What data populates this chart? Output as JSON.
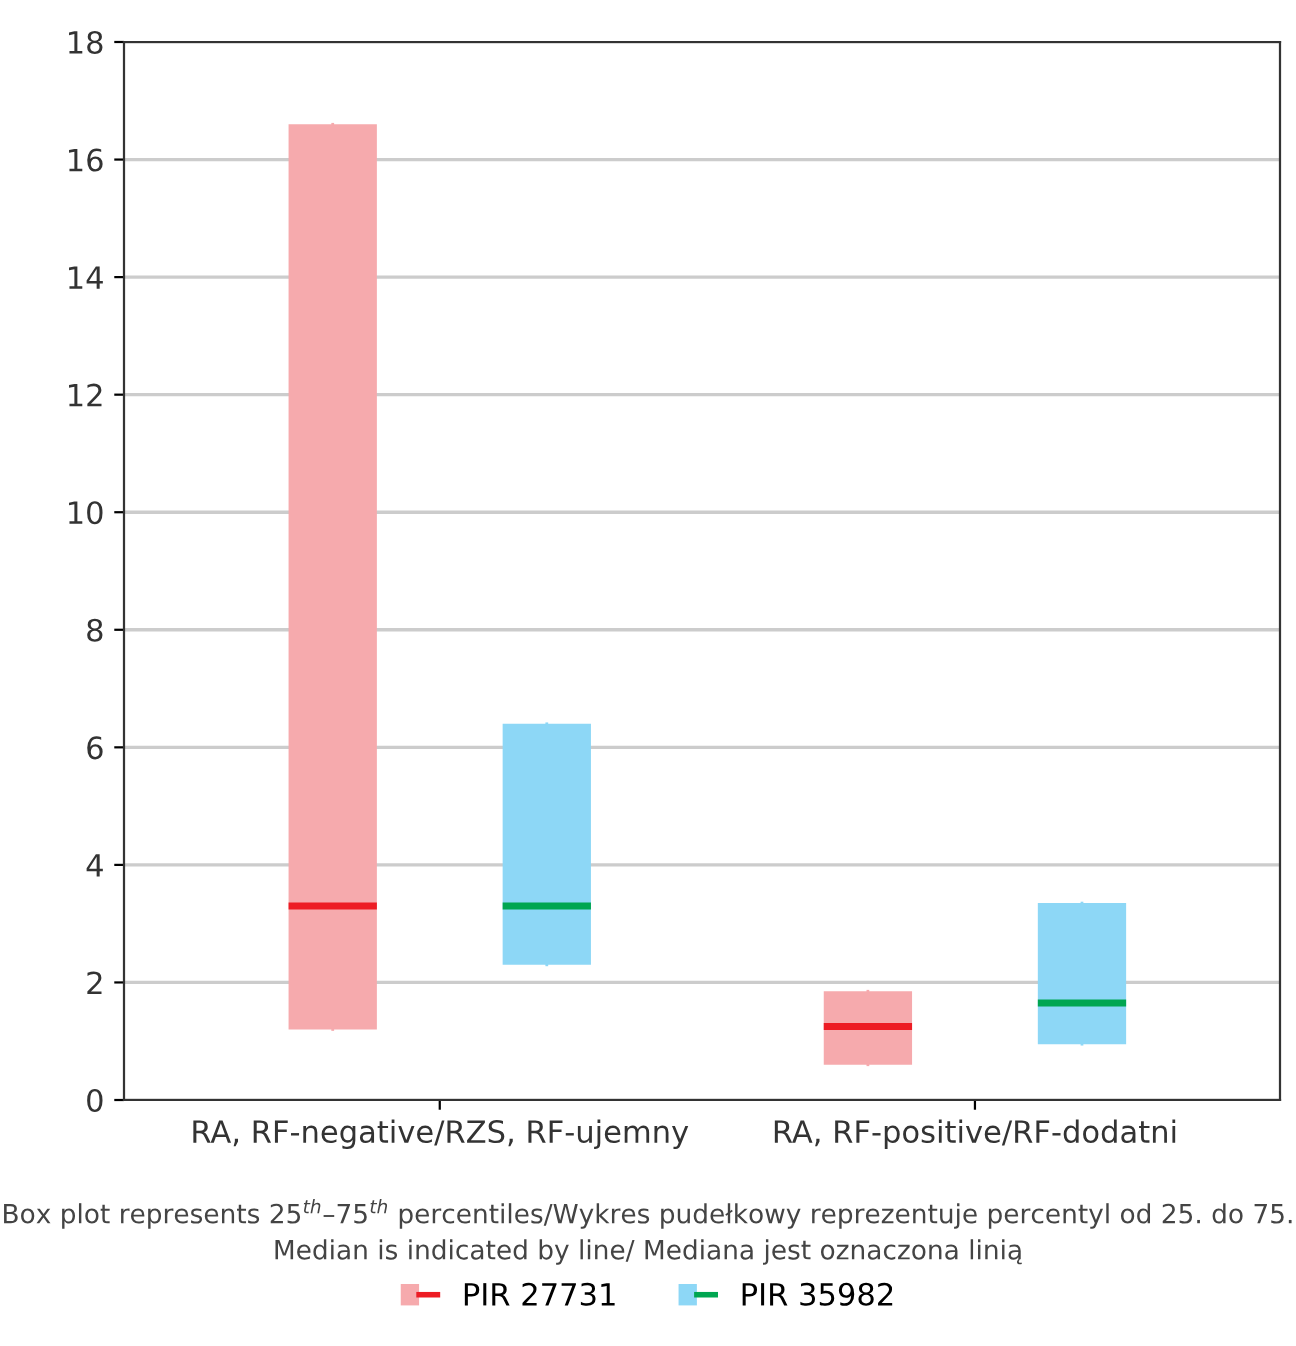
{
  "chart_data": {
    "type": "box",
    "categories": [
      "RA, RF-negative/RZS, RF-ujemny",
      "RA, RF-positive/RF-dodatni"
    ],
    "series": [
      {
        "name": "PIR 27731",
        "color": "#f6aaad",
        "boxes": [
          {
            "low": 1.2,
            "q1": 1.2,
            "median": 3.3,
            "q3": 16.6,
            "high": 16.6
          },
          {
            "low": 0.6,
            "q1": 0.6,
            "median": 1.25,
            "q3": 1.85,
            "high": 1.85
          }
        ]
      },
      {
        "name": "PIR 35982",
        "color": "#8dd7f6",
        "boxes": [
          {
            "low": 2.3,
            "q1": 2.3,
            "median": 3.3,
            "q3": 6.4,
            "high": 6.4
          },
          {
            "low": 0.95,
            "q1": 0.95,
            "median": 1.65,
            "q3": 3.35,
            "high": 3.35
          }
        ]
      }
    ],
    "ylim": [
      0,
      18
    ],
    "yticks": [
      0,
      2,
      4,
      6,
      8,
      10,
      12,
      14,
      16,
      18
    ],
    "grid": "y",
    "legend": "bottom",
    "annotations": [
      "Box plot represents 25$^{th}$–75$^{th}$ percentiles/Wykres pudełkowy reprezentuje percentyl od 25. do 75.",
      "Median is indicated by line/ Mediana jest oznaczona linią"
    ]
  }
}
